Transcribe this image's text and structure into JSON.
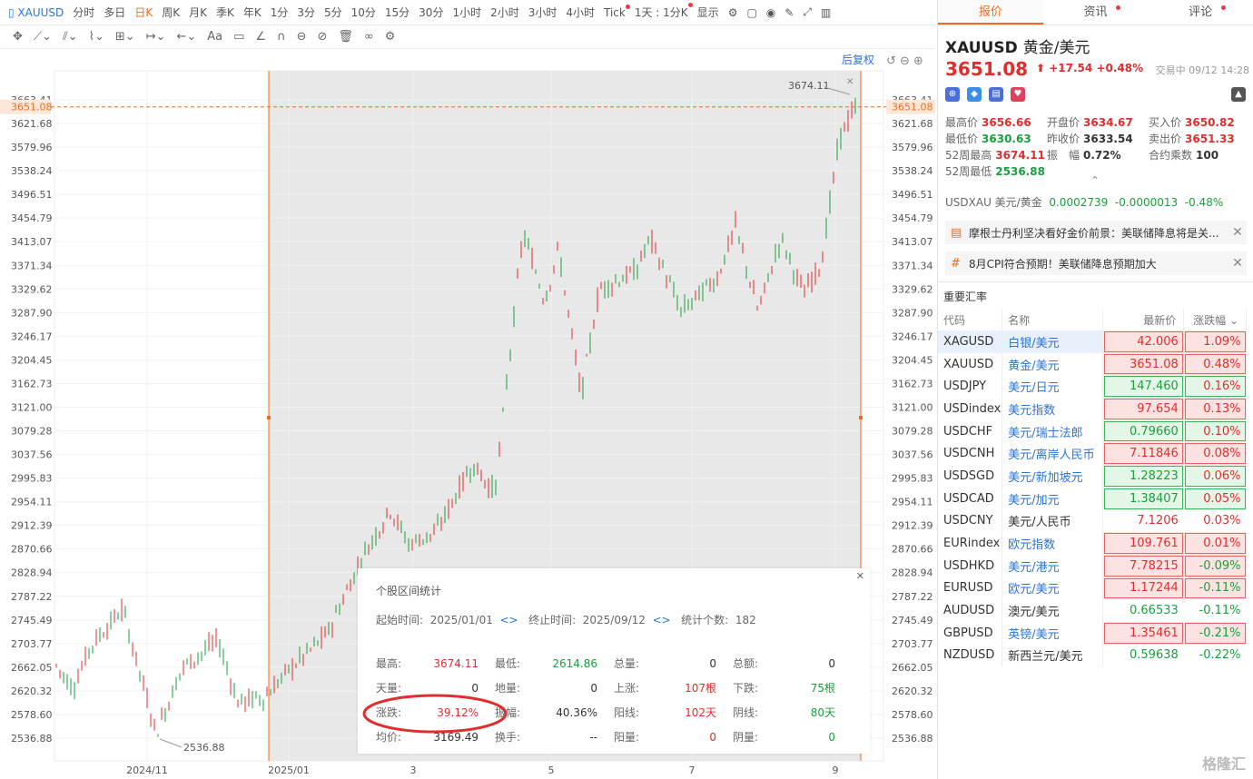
{
  "toolbar": {
    "symbol": "XAUUSD",
    "items": [
      "分时",
      "多日",
      "日K",
      "周K",
      "月K",
      "季K",
      "年K",
      "1分",
      "3分",
      "5分",
      "10分",
      "15分",
      "30分",
      "1小时",
      "2小时",
      "3小时",
      "4小时",
      "Tick",
      "1天 : 1分K",
      "显示"
    ],
    "active": "日K"
  },
  "chart": {
    "adjust_label": "后复权",
    "current_price": "3651.08",
    "high_label": "3674.11",
    "low_label": "2536.88",
    "y_ticks": [
      "3663.41",
      "3621.68",
      "3579.96",
      "3538.24",
      "3496.51",
      "3454.79",
      "3413.07",
      "3371.34",
      "3329.62",
      "3287.90",
      "3246.17",
      "3204.45",
      "3162.73",
      "3121.00",
      "3079.28",
      "3037.56",
      "2995.83",
      "2954.11",
      "2912.39",
      "2870.66",
      "2828.94",
      "2787.22",
      "2745.49",
      "2703.77",
      "2662.05",
      "2620.32",
      "2578.60",
      "2536.88"
    ],
    "x_ticks": [
      "2024/11",
      "2025/01",
      "3",
      "5",
      "7",
      "9"
    ],
    "colors": {
      "up": "#e02d2d",
      "down": "#1a9f3c",
      "accent": "#f26b1d"
    }
  },
  "popup": {
    "title": "个股区间统计",
    "start_label": "起始时间:",
    "start": "2025/01/01",
    "end_label": "终止时间:",
    "end": "2025/09/12",
    "count_label": "统计个数:",
    "count": "182",
    "rows": [
      [
        [
          "最高:",
          "3674.11",
          "red"
        ],
        [
          "最低:",
          "2614.86",
          "green"
        ],
        [
          "总量:",
          "0",
          "dark"
        ],
        [
          "总额:",
          "0",
          "dark"
        ]
      ],
      [
        [
          "天量:",
          "0",
          "dark"
        ],
        [
          "地量:",
          "0",
          "dark"
        ],
        [
          "上涨:",
          "107根",
          "red"
        ],
        [
          "下跌:",
          "75根",
          "green"
        ]
      ],
      [
        [
          "涨跌:",
          "39.12%",
          "red"
        ],
        [
          "振幅:",
          "40.36%",
          "dark"
        ],
        [
          "阳线:",
          "102天",
          "red"
        ],
        [
          "阴线:",
          "80天",
          "green"
        ]
      ],
      [
        [
          "均价:",
          "3169.49",
          "dark"
        ],
        [
          "换手:",
          "--",
          "dark"
        ],
        [
          "阳量:",
          "0",
          "red"
        ],
        [
          "阴量:",
          "0",
          "green"
        ]
      ]
    ]
  },
  "right": {
    "tabs": [
      "报价",
      "资讯",
      "评论"
    ],
    "symbol": "XAUUSD",
    "name": "黄金/美元",
    "price": "3651.08",
    "change": "+17.54",
    "change_pct": "+0.48%",
    "status": "交易中 09/12 14:28",
    "stats": [
      [
        [
          "最高价",
          "3656.66",
          "red"
        ],
        [
          "开盘价",
          "3634.67",
          "red"
        ],
        [
          "买入价",
          "3650.82",
          "red"
        ]
      ],
      [
        [
          "最低价",
          "3630.63",
          "green"
        ],
        [
          "昨收价",
          "3633.54",
          "dark"
        ],
        [
          "卖出价",
          "3651.33",
          "red"
        ]
      ],
      [
        [
          "52周最高",
          "3674.11",
          "red"
        ],
        [
          "振　幅",
          "0.72%",
          "dark"
        ],
        [
          "合约乘数",
          "100",
          "dark"
        ]
      ],
      [
        [
          "52周最低",
          "2536.88",
          "green"
        ]
      ]
    ],
    "usdxau": {
      "label": "USDXAU 美元/黄金",
      "price": "0.0002739",
      "change": "-0.0000013",
      "pct": "-0.48%"
    },
    "news": [
      "摩根士丹利坚决看好金价前景：美联储降息将是关...",
      "8月CPI符合预期！美联储降息预期加大"
    ],
    "fx_title": "重要汇率",
    "fx_headers": [
      "代码",
      "名称",
      "最新价",
      "涨跌幅"
    ],
    "fx": [
      [
        "XAGUSD",
        "白银/美元",
        "42.006",
        "1.09%",
        "r"
      ],
      [
        "XAUUSD",
        "黄金/美元",
        "3651.08",
        "0.48%",
        "r"
      ],
      [
        "USDJPY",
        "美元/日元",
        "147.460",
        "0.16%",
        "g"
      ],
      [
        "USDindex",
        "美元指数",
        "97.654",
        "0.13%",
        "r"
      ],
      [
        "USDCHF",
        "美元/瑞士法郎",
        "0.79660",
        "0.10%",
        "g"
      ],
      [
        "USDCNH",
        "美元/离岸人民币",
        "7.11846",
        "0.08%",
        "r"
      ],
      [
        "USDSGD",
        "美元/新加坡元",
        "1.28223",
        "0.06%",
        "g"
      ],
      [
        "USDCAD",
        "美元/加元",
        "1.38407",
        "0.05%",
        "g"
      ],
      [
        "USDCNY",
        "美元/人民币",
        "7.1206",
        "0.03%",
        "n"
      ],
      [
        "EURindex",
        "欧元指数",
        "109.761",
        "0.01%",
        "r"
      ],
      [
        "USDHKD",
        "美元/港元",
        "7.78215",
        "-0.09%",
        "r"
      ],
      [
        "EURUSD",
        "欧元/美元",
        "1.17244",
        "-0.11%",
        "r"
      ],
      [
        "AUDUSD",
        "澳元/美元",
        "0.66533",
        "-0.11%",
        "n"
      ],
      [
        "GBPUSD",
        "英镑/美元",
        "1.35461",
        "-0.21%",
        "r"
      ],
      [
        "NZDUSD",
        "新西兰元/美元",
        "0.59638",
        "-0.22%",
        "n"
      ]
    ]
  },
  "watermark": "格隆汇"
}
